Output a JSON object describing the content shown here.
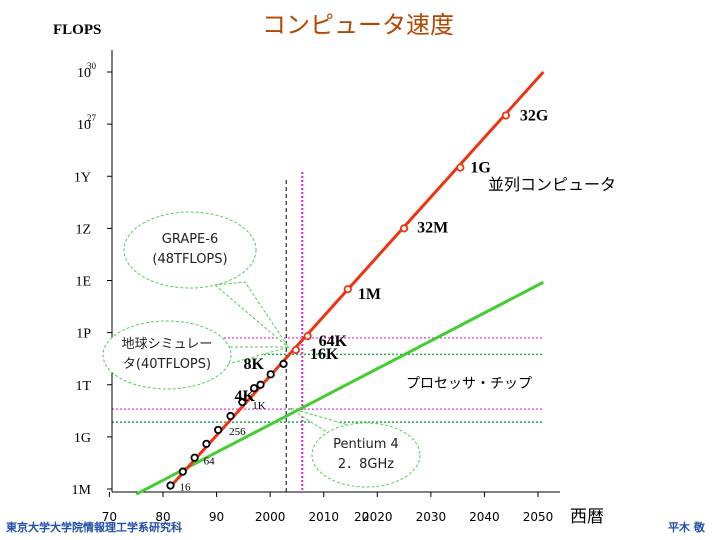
{
  "chart_data": {
    "type": "line",
    "title": "コンピュータ速度",
    "ylabel": "FLOPS",
    "xlabel": "西暦",
    "x_ticks": [
      "70",
      "80",
      "90",
      "2000",
      "2010",
      "2020",
      "2030",
      "2040",
      "2050"
    ],
    "x_tick_values": [
      1970,
      1980,
      1990,
      2000,
      2010,
      2020,
      2030,
      2040,
      2050
    ],
    "y_ticks": [
      {
        "base": "1M",
        "sup": ""
      },
      {
        "base": "1G",
        "sup": ""
      },
      {
        "base": "1T",
        "sup": ""
      },
      {
        "base": "1P",
        "sup": ""
      },
      {
        "base": "1E",
        "sup": ""
      },
      {
        "base": "1Z",
        "sup": ""
      },
      {
        "base": "1Y",
        "sup": ""
      },
      {
        "base": "10",
        "sup": "27"
      },
      {
        "base": "10",
        "sup": "30"
      }
    ],
    "y_tick_log10": [
      6,
      9,
      12,
      15,
      18,
      21,
      24,
      27,
      30
    ],
    "xlim": [
      1968,
      2052
    ],
    "ylim_log10": [
      6,
      30.5
    ],
    "y_scale": "log",
    "series": [
      {
        "name": "並列コンピュータ",
        "color": "#ee3311",
        "line": [
          [
            1981,
            6
          ],
          [
            2051,
            30
          ]
        ],
        "points": [
          {
            "x": 1981.4,
            "y": 6.2,
            "label": "16"
          },
          {
            "x": 1983.7,
            "y": 7.0,
            "label": ""
          },
          {
            "x": 1985.9,
            "y": 7.8,
            "label": "64"
          },
          {
            "x": 1988.1,
            "y": 8.6,
            "label": ""
          },
          {
            "x": 1990.3,
            "y": 9.4,
            "label": "256"
          },
          {
            "x": 1992.6,
            "y": 10.2,
            "label": ""
          },
          {
            "x": 1994.8,
            "y": 11.0,
            "label": "1K"
          },
          {
            "x": 1997.0,
            "y": 11.8,
            "label": ""
          },
          {
            "x": 1998.2,
            "y": 12.0,
            "label": "4K"
          },
          {
            "x": 2000.1,
            "y": 12.6,
            "label": ""
          },
          {
            "x": 2002.5,
            "y": 13.2,
            "label": "8K"
          },
          {
            "x": 2004.8,
            "y": 14.0,
            "label": "16K"
          },
          {
            "x": 2007.0,
            "y": 14.8,
            "label": "64K"
          },
          {
            "x": 2014.5,
            "y": 17.5,
            "label": "1M"
          },
          {
            "x": 2025.0,
            "y": 21.0,
            "label": "32M"
          },
          {
            "x": 2035.5,
            "y": 24.5,
            "label": "1G"
          },
          {
            "x": 2044.0,
            "y": 27.5,
            "label": "32G"
          }
        ]
      },
      {
        "name": "プロセッサ・チップ",
        "color": "#44cc33",
        "line": [
          [
            1975,
            5.7
          ],
          [
            2051,
            17.9
          ]
        ]
      }
    ],
    "reference_lines": {
      "vertical_dashed_black": 2003,
      "vertical_dotted_magenta": 2006,
      "horizontal_dotted_magenta": [
        14.7,
        10.6
      ],
      "horizontal_dotted_green": [
        13.75,
        9.85
      ]
    },
    "annotations": [
      {
        "id": "grape",
        "lines": [
          "GRAPE-6",
          "(48TFLOPS)"
        ]
      },
      {
        "id": "earth",
        "lines": [
          "地球シミュレー",
          "タ(40TFLOPS)"
        ]
      },
      {
        "id": "pentium",
        "lines": [
          "Pentium 4",
          "2．8GHz"
        ]
      }
    ],
    "stray_text": "20",
    "footer_left": "東京大学大学院情報理工学系研究科",
    "footer_right": "平木 敬"
  }
}
